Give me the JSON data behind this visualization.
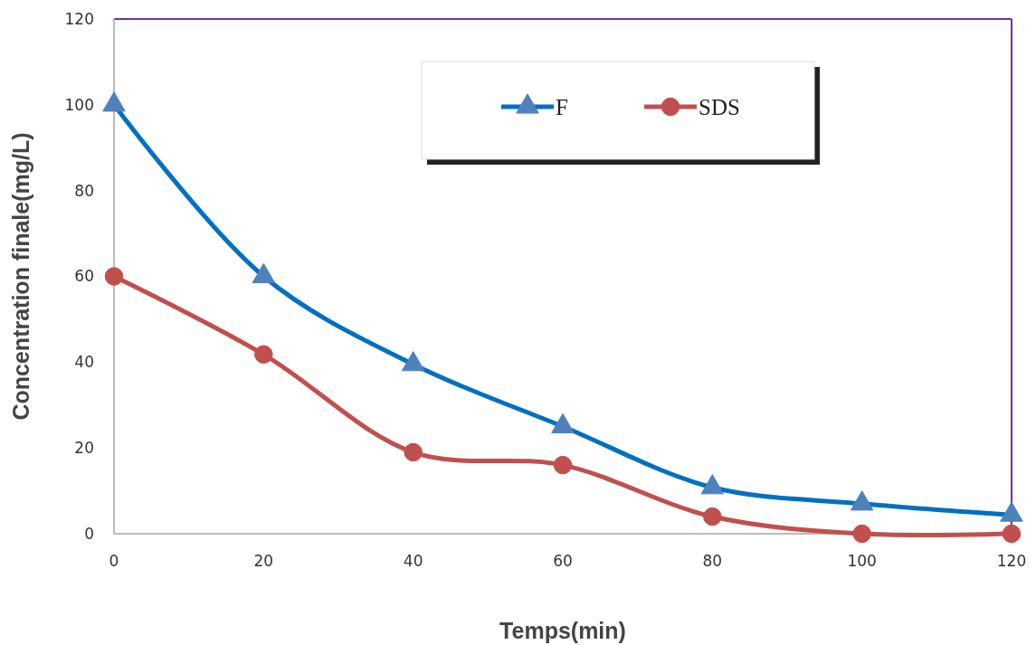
{
  "chart_data": {
    "type": "line",
    "xlabel": "Temps(min)",
    "ylabel": "Concentration finale(mg/L)",
    "x": [
      0,
      20,
      40,
      60,
      80,
      100,
      120
    ],
    "series": [
      {
        "name": "F",
        "color": "#0070c0",
        "marker": "triangle",
        "values": [
          100,
          60,
          39.5,
          25,
          10.8,
          7,
          4.4
        ]
      },
      {
        "name": "SDS",
        "color": "#c0504d",
        "marker": "circle",
        "values": [
          60,
          41.8,
          19,
          16,
          4,
          0,
          0
        ]
      }
    ],
    "xlim": [
      0,
      120
    ],
    "xticks": [
      0,
      20,
      40,
      60,
      80,
      100,
      120
    ],
    "ylim": [
      0,
      120
    ],
    "yticks": [
      0,
      20,
      40,
      60,
      80,
      100,
      120
    ],
    "grid": false,
    "legend": "top"
  }
}
